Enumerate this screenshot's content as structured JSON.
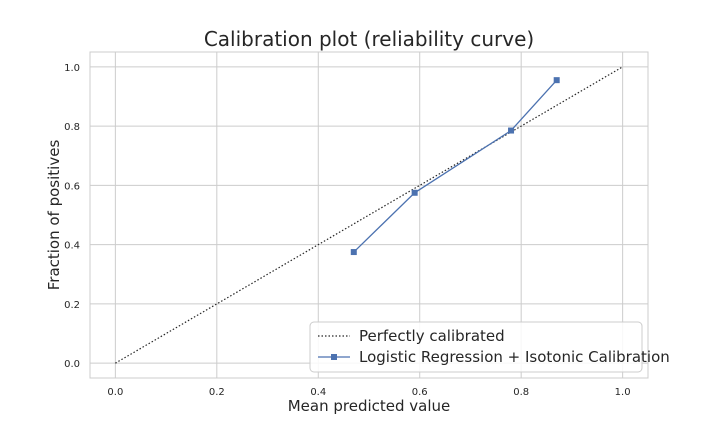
{
  "chart_data": {
    "type": "line",
    "title": "Calibration plot  (reliability curve)",
    "xlabel": "Mean predicted value",
    "ylabel": "Fraction of positives",
    "xlim": [
      -0.05,
      1.05
    ],
    "ylim": [
      -0.05,
      1.05
    ],
    "xticks": [
      0.0,
      0.2,
      0.4,
      0.6,
      0.8,
      1.0
    ],
    "yticks": [
      0.0,
      0.2,
      0.4,
      0.6,
      0.8,
      1.0
    ],
    "xtick_labels": [
      "0.0",
      "0.2",
      "0.4",
      "0.6",
      "0.8",
      "1.0"
    ],
    "ytick_labels": [
      "0.0",
      "0.2",
      "0.4",
      "0.6",
      "0.8",
      "1.0"
    ],
    "grid": true,
    "legend_position": "lower-right",
    "series": [
      {
        "name": "Perfectly calibrated",
        "style": "dotted",
        "color": "#262626",
        "x": [
          0.0,
          1.0
        ],
        "y": [
          0.0,
          1.0
        ]
      },
      {
        "name": "Logistic Regression + Isotonic Calibration",
        "style": "solid",
        "marker": "square",
        "color": "#4c72b0",
        "x": [
          0.47,
          0.59,
          0.78,
          0.87
        ],
        "y": [
          0.375,
          0.575,
          0.785,
          0.955
        ]
      }
    ]
  },
  "colors": {
    "grid": "#cccccc",
    "frame": "#cccccc",
    "text": "#262626"
  }
}
